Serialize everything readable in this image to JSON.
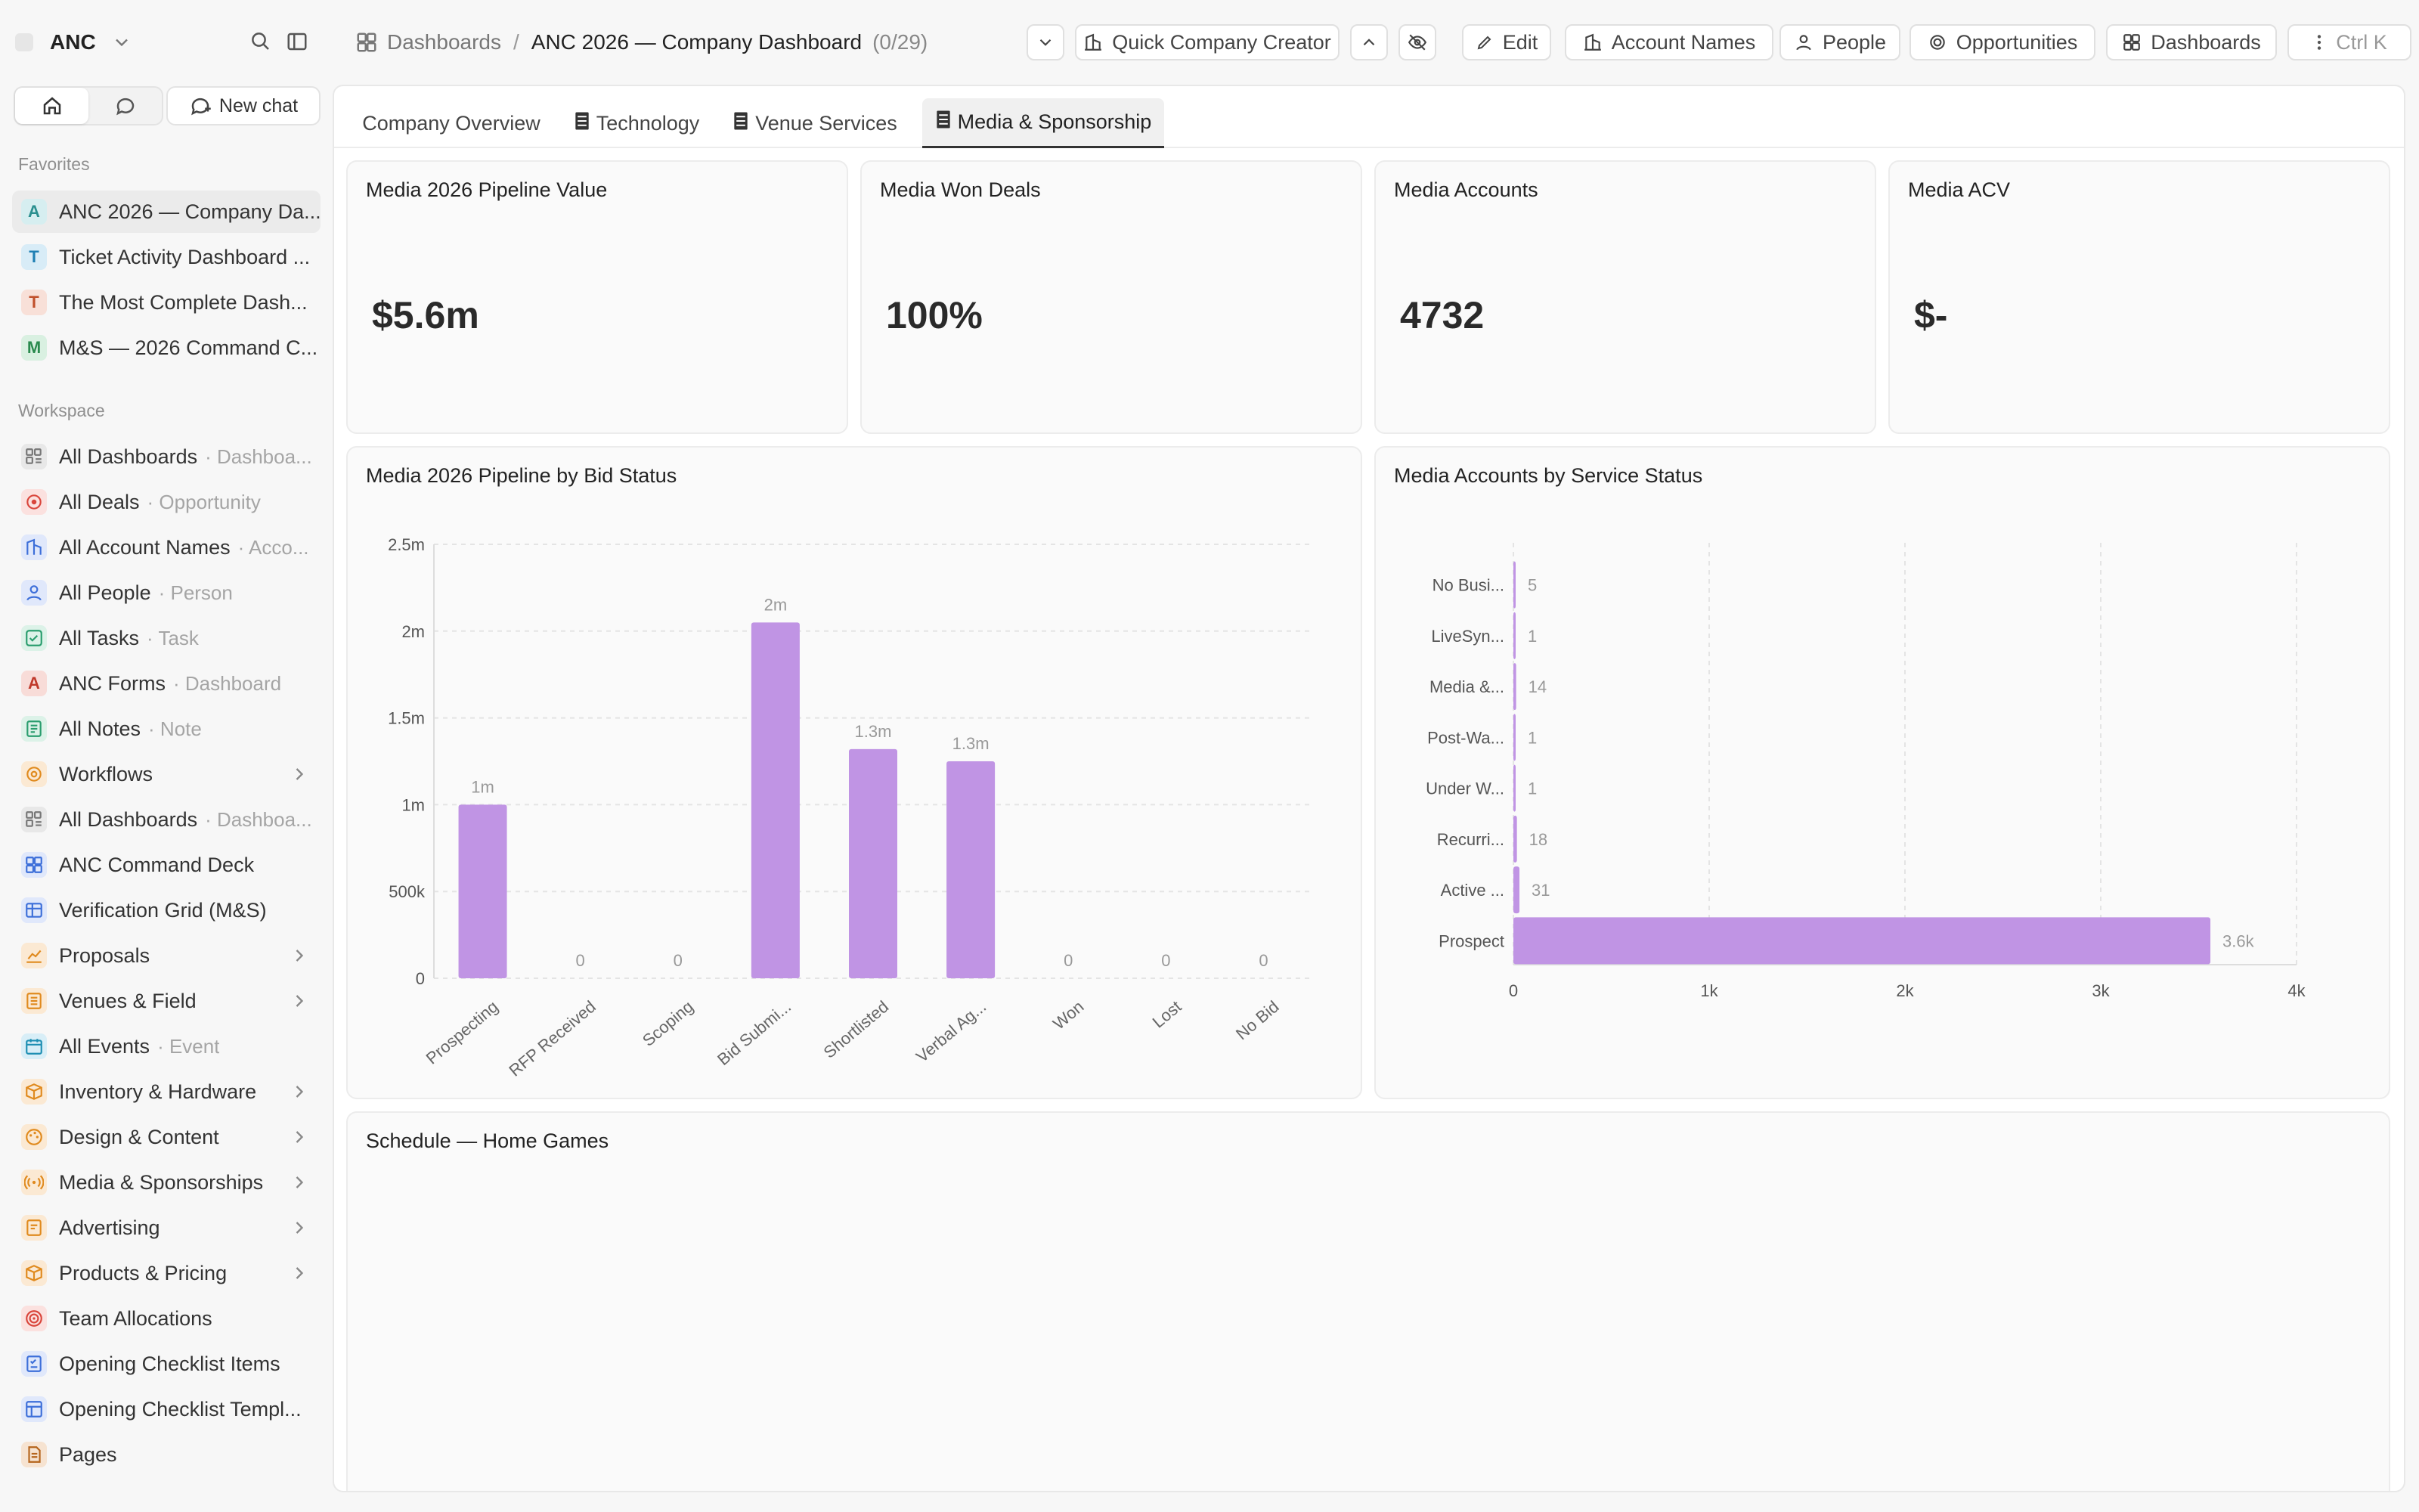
{
  "workspace": {
    "name": "ANC"
  },
  "sidebar": {
    "new_chat": "New chat",
    "favorites_title": "Favorites",
    "favorites": [
      {
        "letter": "A",
        "label": "ANC 2026 — Company Da...",
        "color": "#2a8f8f",
        "bg": "#d6eef0",
        "active": true
      },
      {
        "letter": "T",
        "label": "Ticket Activity Dashboard ...",
        "color": "#1e7fb3",
        "bg": "#d8ecf7"
      },
      {
        "letter": "T",
        "label": "The Most Complete Dash...",
        "color": "#c0502b",
        "bg": "#f8e0d8"
      },
      {
        "letter": "M",
        "label": "M&S — 2026 Command C...",
        "color": "#2a8a4e",
        "bg": "#d9f0e1"
      }
    ],
    "workspace_title": "Workspace",
    "workspace_items": [
      {
        "icon": "dashboard-list-icon",
        "label": "All Dashboards",
        "sub": "· Dashboa...",
        "color": "#777",
        "bg": "#e8e8e8"
      },
      {
        "icon": "deals-icon",
        "label": "All Deals",
        "sub": "· Opportunity",
        "color": "#d9453b",
        "bg": "#fbe1df"
      },
      {
        "icon": "account-names-icon",
        "label": "All Account Names",
        "sub": "· Acco...",
        "color": "#3d6fd9",
        "bg": "#e0e8fb"
      },
      {
        "icon": "people-icon",
        "label": "All People",
        "sub": "· Person",
        "color": "#3d6fd9",
        "bg": "#e0e8fb"
      },
      {
        "icon": "tasks-icon",
        "label": "All Tasks",
        "sub": "· Task",
        "color": "#2a9d6e",
        "bg": "#dcf2e8"
      },
      {
        "icon": "letter-a-icon",
        "letter": "A",
        "label": "ANC Forms",
        "sub": "· Dashboard",
        "color": "#c0392b",
        "bg": "#f8dcd8"
      },
      {
        "icon": "notes-icon",
        "label": "All Notes",
        "sub": "· Note",
        "color": "#2a9d6e",
        "bg": "#dcf2e8"
      },
      {
        "icon": "workflows-icon",
        "label": "Workflows",
        "chevron": true,
        "color": "#e08a1e",
        "bg": "#fbe9d3"
      },
      {
        "icon": "dashboard-list-icon",
        "label": "All Dashboards",
        "sub": "· Dashboa...",
        "color": "#777",
        "bg": "#e8e8e8"
      },
      {
        "icon": "grid-icon",
        "label": "ANC Command Deck",
        "color": "#3d6fd9",
        "bg": "#e0e8fb"
      },
      {
        "icon": "table-icon",
        "label": "Verification Grid (M&S)",
        "color": "#3d6fd9",
        "bg": "#e0e8fb"
      },
      {
        "icon": "chart-icon",
        "label": "Proposals",
        "chevron": true,
        "color": "#e08a1e",
        "bg": "#fbe9d3"
      },
      {
        "icon": "venue-icon",
        "label": "Venues & Field",
        "chevron": true,
        "color": "#e08a1e",
        "bg": "#fbe9d3"
      },
      {
        "icon": "events-icon",
        "label": "All Events",
        "sub": "· Event",
        "color": "#1e8fb3",
        "bg": "#d8eef7"
      },
      {
        "icon": "box-icon",
        "label": "Inventory & Hardware",
        "chevron": true,
        "color": "#e08a1e",
        "bg": "#fbe9d3"
      },
      {
        "icon": "palette-icon",
        "label": "Design & Content",
        "chevron": true,
        "color": "#e08a1e",
        "bg": "#fbe9d3"
      },
      {
        "icon": "broadcast-icon",
        "label": "Media & Sponsorships",
        "chevron": true,
        "color": "#e08a1e",
        "bg": "#fbe9d3"
      },
      {
        "icon": "ad-icon",
        "label": "Advertising",
        "chevron": true,
        "color": "#e08a1e",
        "bg": "#fbe9d3"
      },
      {
        "icon": "box-icon",
        "label": "Products & Pricing",
        "chevron": true,
        "color": "#e08a1e",
        "bg": "#fbe9d3"
      },
      {
        "icon": "target-icon",
        "label": "Team Allocations",
        "color": "#d9453b",
        "bg": "#fbe1df"
      },
      {
        "icon": "checklist-icon",
        "label": "Opening Checklist Items",
        "color": "#3d6fd9",
        "bg": "#e0e8fb"
      },
      {
        "icon": "template-icon",
        "label": "Opening Checklist Templ...",
        "color": "#3d6fd9",
        "bg": "#e0e8fb"
      },
      {
        "icon": "pages-icon",
        "label": "Pages",
        "color": "#b5651d",
        "bg": "#f6e3d1"
      }
    ]
  },
  "breadcrumb": {
    "root": "Dashboards",
    "separator": "/",
    "current": "ANC 2026 — Company Dashboard",
    "count": "(0/29)"
  },
  "toolbar": {
    "quick_company_creator": "Quick Company Creator",
    "edit": "Edit",
    "account_names": "Account Names",
    "people": "People",
    "opportunities": "Opportunities",
    "dashboards": "Dashboards",
    "shortcut": "Ctrl K"
  },
  "tabs": [
    {
      "label": "Company Overview",
      "icon": false
    },
    {
      "label": "Technology",
      "icon": true
    },
    {
      "label": "Venue Services",
      "icon": true
    },
    {
      "label": "Media & Sponsorship",
      "icon": true,
      "active": true
    }
  ],
  "kpis": [
    {
      "title": "Media 2026 Pipeline Value",
      "value": "$5.6m"
    },
    {
      "title": "Media Won Deals",
      "value": "100%"
    },
    {
      "title": "Media Accounts",
      "value": "4732"
    },
    {
      "title": "Media ACV",
      "value": "$-"
    }
  ],
  "chart_data": [
    {
      "type": "bar",
      "title": "Media 2026 Pipeline by Bid Status",
      "categories": [
        "Prospecting",
        "RFP Received",
        "Scoping",
        "Bid Submi...",
        "Shortlisted",
        "Verbal Ag...",
        "Won",
        "Lost",
        "No Bid"
      ],
      "values": [
        1000000,
        0,
        0,
        2050000,
        1320000,
        1250000,
        0,
        0,
        0
      ],
      "data_labels": [
        "1m",
        "0",
        "0",
        "2m",
        "1.3m",
        "1.3m",
        "0",
        "0",
        "0"
      ],
      "yticks": [
        "0",
        "500k",
        "1m",
        "1.5m",
        "2m",
        "2.5m"
      ],
      "ylim": [
        0,
        2500000
      ],
      "bar_color": "#c094e4",
      "grid": true
    },
    {
      "type": "bar",
      "orientation": "horizontal",
      "title": "Media Accounts by Service Status",
      "categories": [
        "No Busi...",
        "LiveSyn...",
        "Media &...",
        "Post-Wa...",
        "Under W...",
        "Recurri...",
        "Active ...",
        "Prospect"
      ],
      "values": [
        5,
        1,
        14,
        1,
        1,
        18,
        31,
        3560
      ],
      "data_labels": [
        "5",
        "1",
        "14",
        "1",
        "1",
        "18",
        "31",
        "3.6k"
      ],
      "xticks": [
        "0",
        "1k",
        "2k",
        "3k",
        "4k"
      ],
      "xlim": [
        0,
        4000
      ],
      "bar_color": "#c094e4",
      "grid": true
    }
  ],
  "schedule": {
    "title": "Schedule — Home Games"
  }
}
